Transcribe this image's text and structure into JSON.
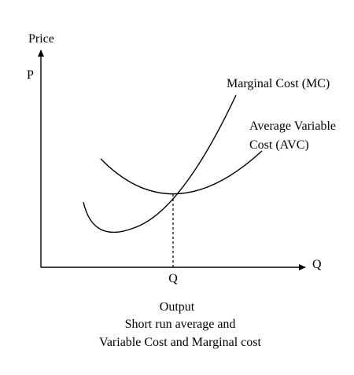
{
  "axes": {
    "y_title": "Price",
    "y_marker": "P",
    "x_marker": "Q",
    "x_tick": "Q"
  },
  "curves": {
    "mc_label": "Marginal Cost (MC)",
    "avc_label_line1": "Average Variable",
    "avc_label_line2": "Cost (AVC)"
  },
  "caption": {
    "line1": "Output",
    "line2": "Short run average and",
    "line3": "Variable Cost and Marginal cost"
  }
}
